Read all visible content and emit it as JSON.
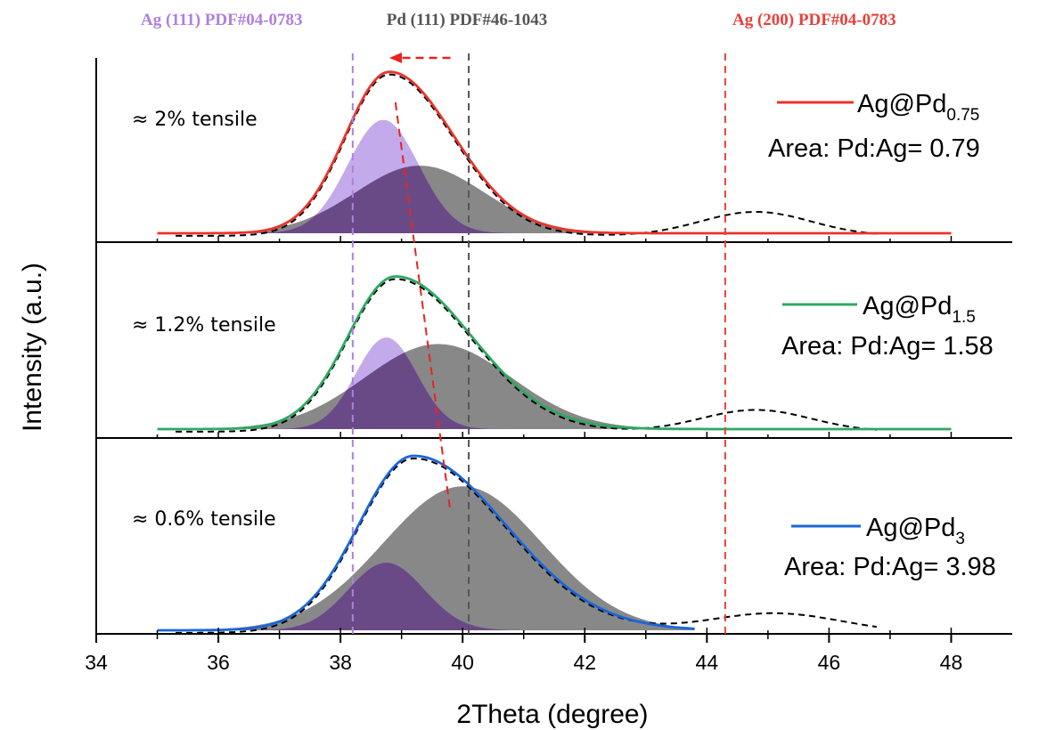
{
  "chart_data": {
    "type": "area",
    "xlabel": "2Theta (degree)",
    "ylabel": "Intensity (a.u.)",
    "xlim": [
      34,
      49
    ],
    "x_ticks": [
      34,
      36,
      38,
      40,
      42,
      44,
      46,
      48
    ],
    "reference_lines": [
      {
        "label": "Ag (111) PDF#04-0783",
        "x": 38.2,
        "color": "#b07fe0"
      },
      {
        "label": "Pd (111) PDF#46-1043",
        "x": 40.1,
        "color": "#555555"
      },
      {
        "label": "Ag (200) PDF#04-0783",
        "x": 44.3,
        "color": "#e8403a"
      }
    ],
    "shift_arrow": {
      "from": 39.8,
      "to": 38.8,
      "color": "#e8241c"
    },
    "peak_trend": {
      "color": "#e8241c",
      "x": [
        38.9,
        39.3,
        39.8
      ]
    },
    "panels": [
      {
        "strain_label": "≈ 2% tensile",
        "legend": {
          "name": "Ag@Pd",
          "subscript": "0.75",
          "area_text": "Area: Pd:Ag= 0.79"
        },
        "fit_color": "#e8342c",
        "fit_xrange": [
          35.0,
          48.0
        ],
        "fit": {
          "center": 38.8,
          "height": 0.74,
          "sigma_left": 0.72,
          "sigma_right": 1.05
        },
        "ag_peak": {
          "center": 38.7,
          "height": 0.52,
          "sigma": 0.58
        },
        "pd_peak": {
          "center": 39.3,
          "height": 0.31,
          "sigma": 1.05
        },
        "experimental_ag200": {
          "center": 44.8,
          "height": 0.11,
          "sigma": 0.9
        }
      },
      {
        "strain_label": "≈ 1.2% tensile",
        "legend": {
          "name": "Ag@Pd",
          "subscript": "1.5",
          "area_text": "Area: Pd:Ag= 1.58"
        },
        "fit_color": "#2ea862",
        "fit_xrange": [
          35.0,
          48.0
        ],
        "fit": {
          "center": 38.9,
          "height": 0.7,
          "sigma_left": 0.78,
          "sigma_right": 1.25
        },
        "ag_peak": {
          "center": 38.75,
          "height": 0.42,
          "sigma": 0.5
        },
        "pd_peak": {
          "center": 39.6,
          "height": 0.39,
          "sigma": 1.2
        },
        "experimental_ag200": {
          "center": 44.8,
          "height": 0.1,
          "sigma": 0.9
        }
      },
      {
        "strain_label": "≈ 0.6% tensile",
        "legend": {
          "name": "Ag@Pd",
          "subscript": "3",
          "area_text": "Area: Pd:Ag= 3.98"
        },
        "fit_color": "#1a66d8",
        "fit_xrange": [
          35.0,
          43.8
        ],
        "fit": {
          "center": 39.2,
          "height": 0.8,
          "sigma_left": 0.9,
          "sigma_right": 1.5
        },
        "ag_peak": {
          "center": 38.75,
          "height": 0.31,
          "sigma": 0.62
        },
        "pd_peak": {
          "center": 40.0,
          "height": 0.66,
          "sigma": 1.3
        },
        "experimental_ag200": {
          "center": 45.1,
          "height": 0.09,
          "sigma": 1.1
        }
      }
    ],
    "colors": {
      "ag_fill": "#b89be6",
      "pd_fill": "#5a5a5a",
      "overlap_fill": "#6a4a86",
      "experimental": "#000000"
    }
  }
}
